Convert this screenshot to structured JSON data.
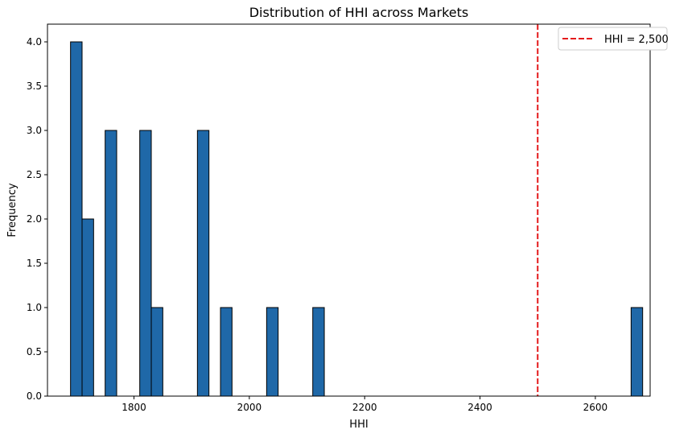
{
  "chart_data": {
    "type": "bar",
    "title": "Distribution of HHI across Markets",
    "xlabel": "HHI",
    "ylabel": "Frequency",
    "xlim": [
      1650,
      2695
    ],
    "ylim": [
      0,
      4.2
    ],
    "bin_width": 20,
    "bins": [
      {
        "start": 1690,
        "count": 4
      },
      {
        "start": 1710,
        "count": 2
      },
      {
        "start": 1750,
        "count": 3
      },
      {
        "start": 1810,
        "count": 3
      },
      {
        "start": 1830,
        "count": 1
      },
      {
        "start": 1910,
        "count": 3
      },
      {
        "start": 1950,
        "count": 1
      },
      {
        "start": 2030,
        "count": 1
      },
      {
        "start": 2110,
        "count": 1
      },
      {
        "start": 2662,
        "count": 1
      }
    ],
    "x_ticks": [
      1800,
      2000,
      2200,
      2400,
      2600
    ],
    "x_tick_labels": [
      "1800",
      "2000",
      "2200",
      "2400",
      "2600"
    ],
    "y_ticks": [
      0,
      0.5,
      1,
      1.5,
      2,
      2.5,
      3,
      3.5,
      4
    ],
    "y_tick_labels": [
      "0.0",
      "0.5",
      "1.0",
      "1.5",
      "2.0",
      "2.5",
      "3.0",
      "3.5",
      "4.0"
    ],
    "reference_line": {
      "x": 2500,
      "label": "HHI = 2,500",
      "color": "#e41a1c",
      "style": "dashed"
    },
    "bar_color": "#1f68a8",
    "bar_edge_color": "#000000",
    "legend_position": "top-right",
    "grid": false
  }
}
